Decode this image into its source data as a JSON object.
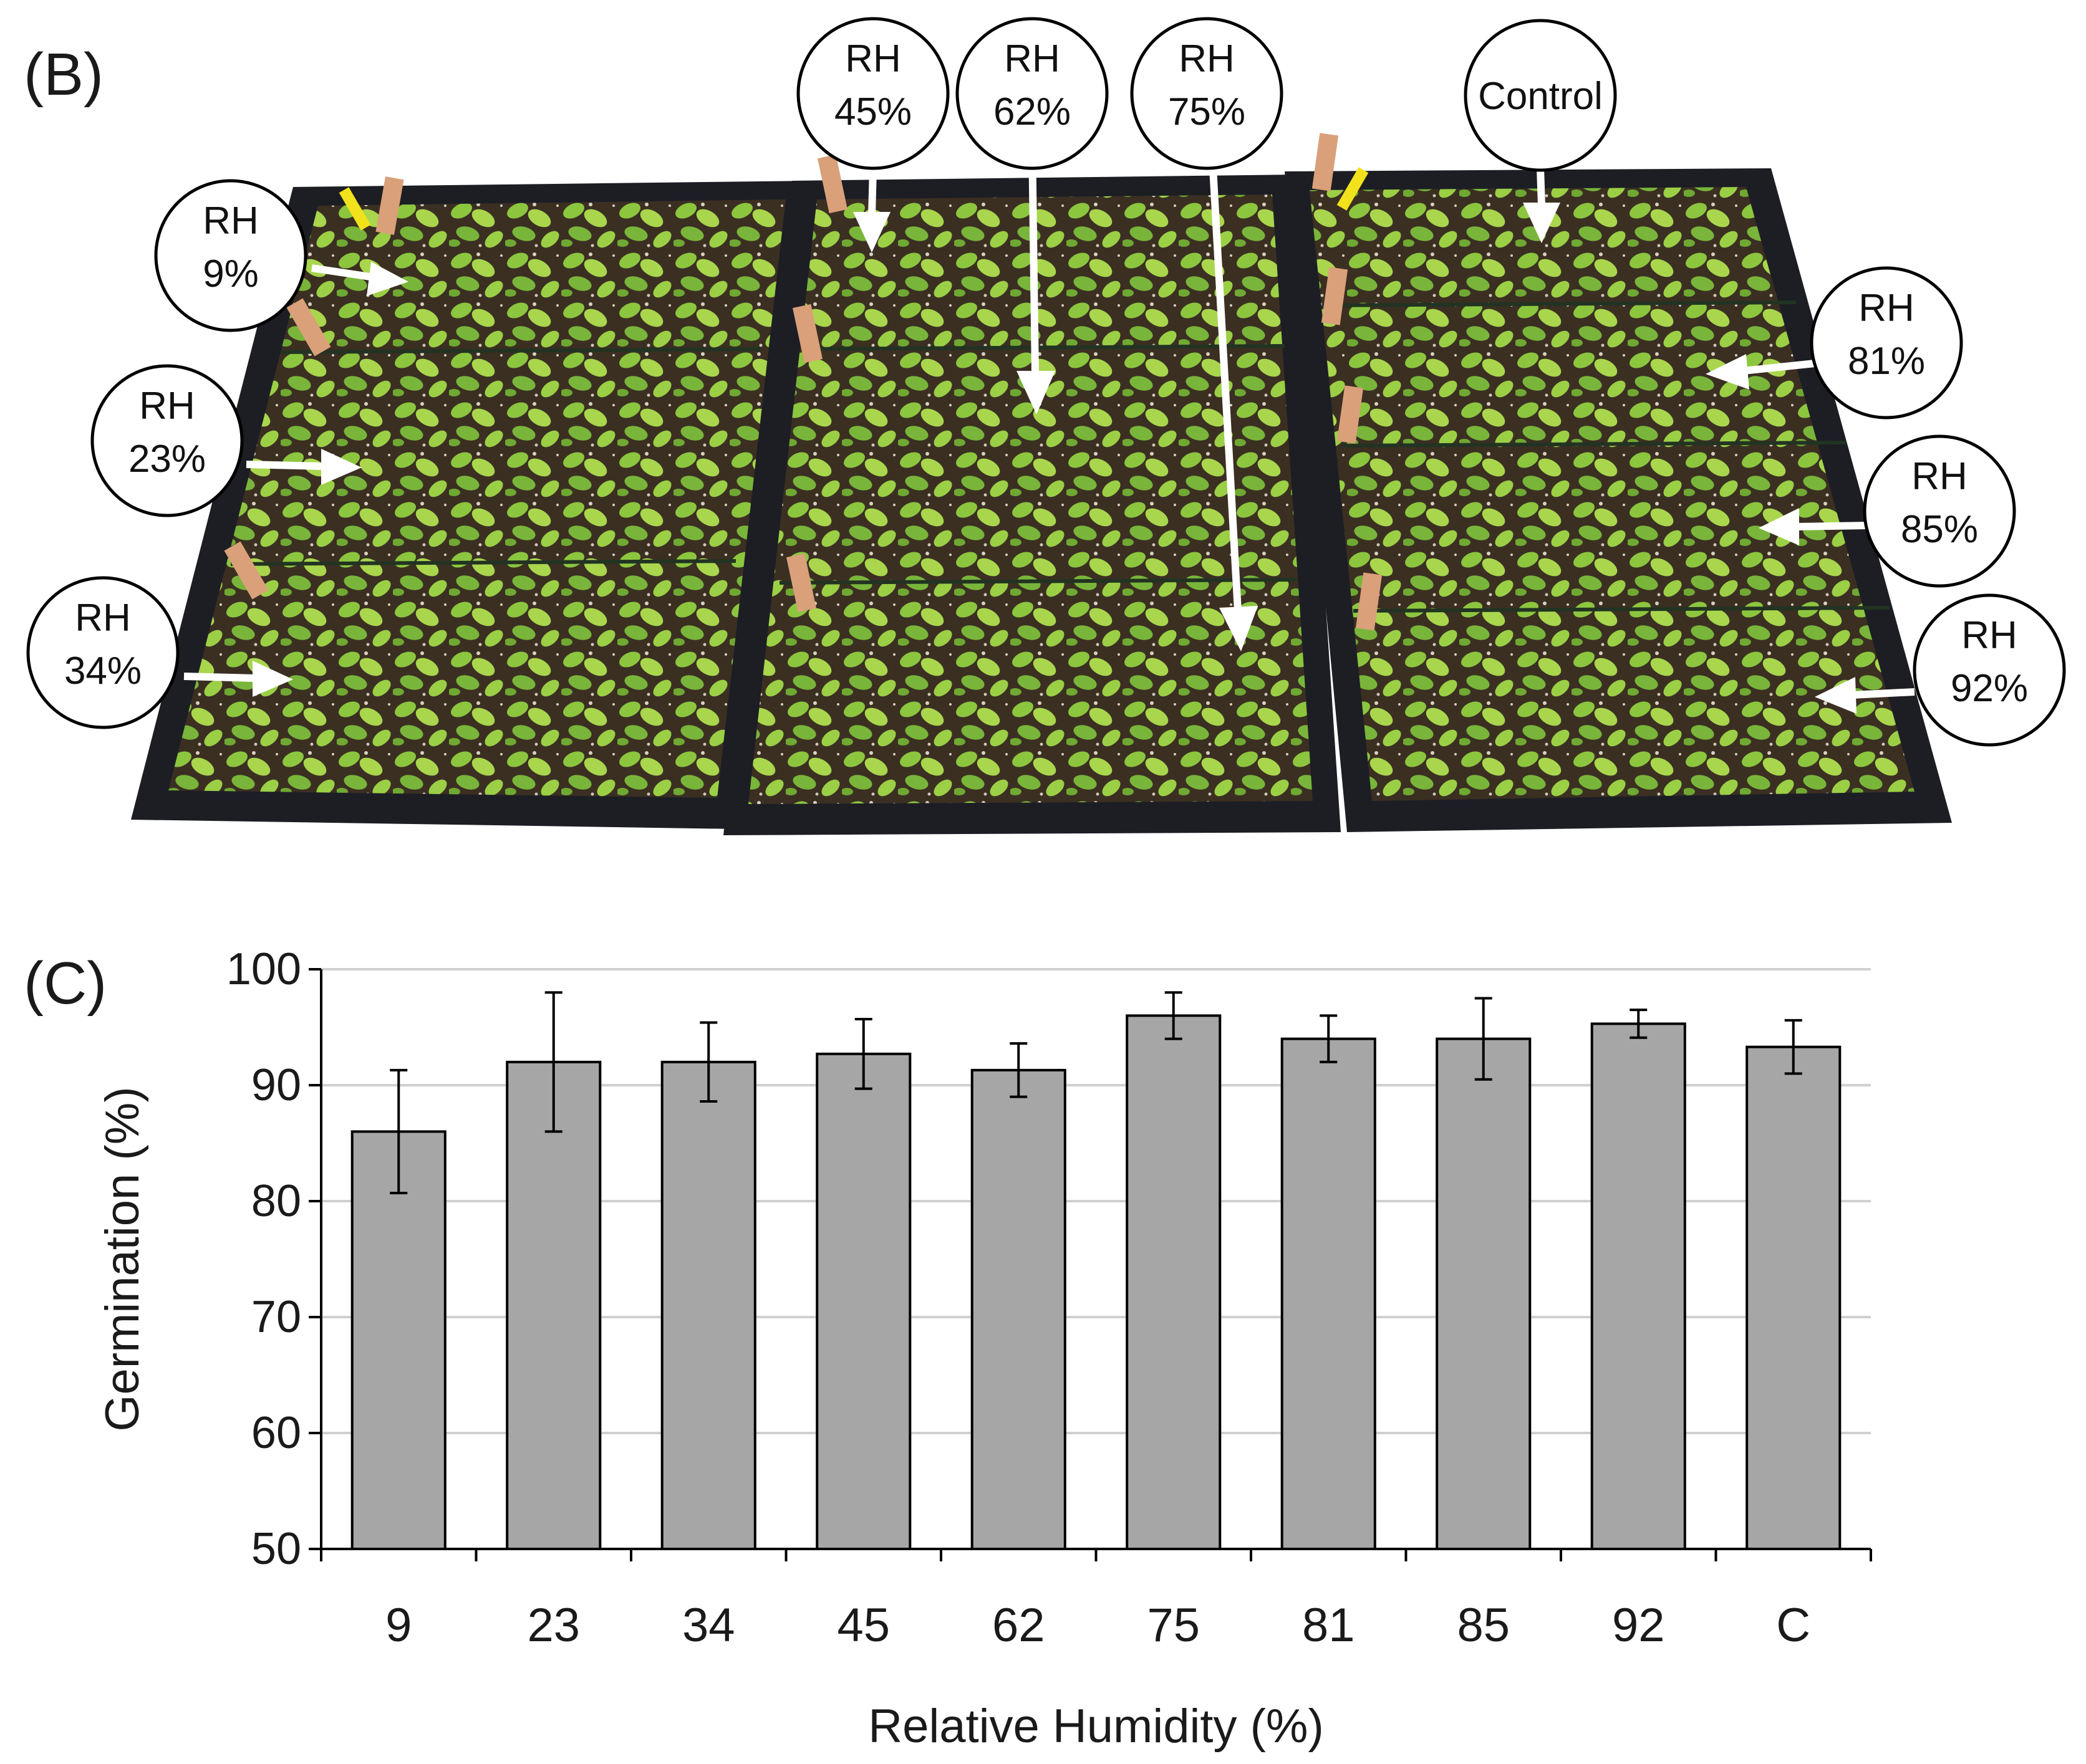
{
  "panel_b": {
    "letter": "(B)",
    "callouts": [
      {
        "id": "rh9",
        "lines": [
          "RH",
          "9%"
        ]
      },
      {
        "id": "rh23",
        "lines": [
          "RH",
          "23%"
        ]
      },
      {
        "id": "rh34",
        "lines": [
          "RH",
          "34%"
        ]
      },
      {
        "id": "rh45",
        "lines": [
          "RH",
          "45%"
        ]
      },
      {
        "id": "rh62",
        "lines": [
          "RH",
          "62%"
        ]
      },
      {
        "id": "rh75",
        "lines": [
          "RH",
          "75%"
        ]
      },
      {
        "id": "control",
        "lines": [
          "Control"
        ]
      },
      {
        "id": "rh81",
        "lines": [
          "RH",
          "81%"
        ]
      },
      {
        "id": "rh85",
        "lines": [
          "RH",
          "85%"
        ]
      },
      {
        "id": "rh92",
        "lines": [
          "RH",
          "92%"
        ]
      }
    ],
    "colors": {
      "tray": "#1c1e24",
      "soil": "#3a2e22",
      "leaf": "#7fb83a",
      "leaf_light": "#a8d24a",
      "arrow": "#ffffff"
    }
  },
  "chart_data": {
    "panel_letter": "(C)",
    "type": "bar",
    "categories": [
      "9",
      "23",
      "34",
      "45",
      "62",
      "75",
      "81",
      "85",
      "92",
      "C"
    ],
    "values": [
      86.0,
      92.0,
      92.0,
      92.7,
      91.3,
      96.0,
      94.0,
      94.0,
      95.3,
      93.3
    ],
    "errors": [
      5.3,
      6.0,
      3.4,
      3.0,
      2.3,
      2.0,
      2.0,
      3.5,
      1.2,
      2.3
    ],
    "xlabel": "Relative Humidity (%)",
    "ylabel": "Germination (%)",
    "ylim": [
      50,
      100
    ],
    "yticks": [
      50,
      60,
      70,
      80,
      90,
      100
    ],
    "grid": true,
    "bar_color": "#a6a6a6",
    "bar_edge": "#000000",
    "grid_color": "#d0d0d0"
  }
}
